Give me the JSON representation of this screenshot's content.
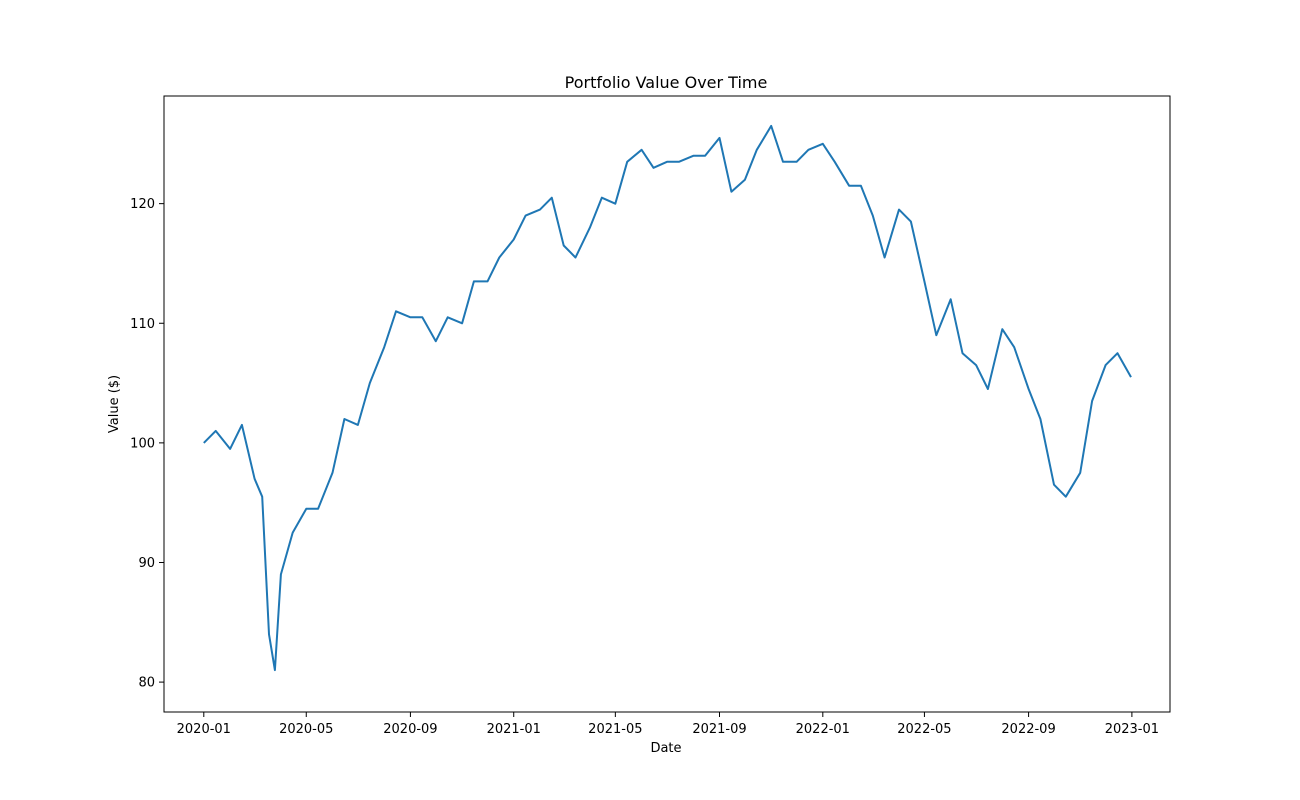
{
  "chart_data": {
    "type": "line",
    "title": "Portfolio Value Over Time",
    "xlabel": "Date",
    "ylabel": "Value ($)",
    "x_ticks": [
      "2020-01",
      "2020-05",
      "2020-09",
      "2021-01",
      "2021-05",
      "2021-09",
      "2022-01",
      "2022-05",
      "2022-09",
      "2023-01"
    ],
    "y_ticks": [
      80,
      90,
      100,
      110,
      120
    ],
    "xlim": [
      "2019-11-15",
      "2023-02-15"
    ],
    "ylim": [
      77.5,
      129.0
    ],
    "grid": false,
    "line_color": "#1f77b4",
    "series": [
      {
        "x": [
          "2020-01-01",
          "2020-01-15",
          "2020-02-01",
          "2020-02-15",
          "2020-03-01",
          "2020-03-10",
          "2020-03-18",
          "2020-03-25",
          "2020-04-01",
          "2020-04-15",
          "2020-05-01",
          "2020-05-15",
          "2020-06-01",
          "2020-06-15",
          "2020-07-01",
          "2020-07-15",
          "2020-08-01",
          "2020-08-15",
          "2020-09-01",
          "2020-09-15",
          "2020-10-01",
          "2020-10-15",
          "2020-11-01",
          "2020-11-15",
          "2020-12-01",
          "2020-12-15",
          "2021-01-01",
          "2021-01-15",
          "2021-02-01",
          "2021-02-15",
          "2021-03-01",
          "2021-03-15",
          "2021-04-01",
          "2021-04-15",
          "2021-05-01",
          "2021-05-15",
          "2021-06-01",
          "2021-06-15",
          "2021-07-01",
          "2021-07-15",
          "2021-08-01",
          "2021-08-15",
          "2021-09-01",
          "2021-09-15",
          "2021-10-01",
          "2021-10-15",
          "2021-11-01",
          "2021-11-15",
          "2021-12-01",
          "2021-12-15",
          "2022-01-01",
          "2022-01-15",
          "2022-02-01",
          "2022-02-15",
          "2022-03-01",
          "2022-03-15",
          "2022-04-01",
          "2022-04-15",
          "2022-05-01",
          "2022-05-15",
          "2022-06-01",
          "2022-06-15",
          "2022-07-01",
          "2022-07-15",
          "2022-08-01",
          "2022-08-15",
          "2022-09-01",
          "2022-09-15",
          "2022-10-01",
          "2022-10-15",
          "2022-11-01",
          "2022-11-15",
          "2022-12-01",
          "2022-12-15",
          "2022-12-31"
        ],
        "y": [
          100.0,
          101.0,
          99.5,
          101.5,
          97.0,
          95.5,
          84.0,
          81.0,
          89.0,
          92.5,
          94.5,
          94.5,
          97.5,
          102.0,
          101.5,
          105.0,
          108.0,
          111.0,
          110.5,
          110.5,
          108.5,
          110.5,
          110.0,
          113.5,
          113.5,
          115.5,
          117.0,
          119.0,
          119.5,
          120.5,
          116.5,
          115.5,
          118.0,
          120.5,
          120.0,
          123.5,
          124.5,
          123.0,
          123.5,
          123.5,
          124.0,
          124.0,
          125.5,
          121.0,
          122.0,
          124.5,
          126.5,
          123.5,
          123.5,
          124.5,
          125.0,
          123.5,
          121.5,
          121.5,
          119.0,
          115.5,
          119.5,
          118.5,
          113.5,
          109.0,
          112.0,
          107.5,
          106.5,
          104.5,
          109.5,
          108.0,
          104.5,
          102.0,
          96.5,
          95.5,
          97.5,
          103.5,
          106.5,
          107.5,
          105.5
        ]
      }
    ]
  }
}
